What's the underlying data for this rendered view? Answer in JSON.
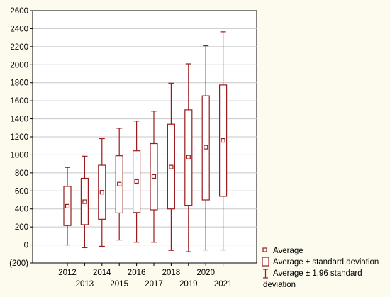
{
  "chart_data": {
    "type": "box",
    "categories": [
      "2012",
      "2013",
      "2014",
      "2015",
      "2016",
      "2017",
      "2018",
      "2019",
      "2020",
      "2021"
    ],
    "series": [
      {
        "average": [
          430,
          480,
          585,
          675,
          705,
          760,
          865,
          975,
          1085,
          1160
        ],
        "box_low": [
          215,
          225,
          285,
          355,
          360,
          390,
          400,
          440,
          500,
          540
        ],
        "box_high": [
          650,
          740,
          885,
          990,
          1045,
          1125,
          1340,
          1500,
          1655,
          1775
        ],
        "whisker_low": [
          0,
          -30,
          -15,
          55,
          30,
          30,
          -60,
          -75,
          -55,
          -55
        ],
        "whisker_high": [
          860,
          985,
          1180,
          1295,
          1375,
          1485,
          1795,
          2010,
          2210,
          2365
        ]
      }
    ],
    "ylim": [
      -200,
      2600
    ],
    "yticks": [
      -200,
      0,
      200,
      400,
      600,
      800,
      1000,
      1200,
      1400,
      1600,
      1800,
      2000,
      2200,
      2400,
      2600
    ],
    "ytick_labels": [
      "(200)",
      "0",
      "200",
      "400",
      "600",
      "800",
      "1000",
      "1200",
      "1400",
      "1600",
      "1800",
      "2000",
      "2200",
      "2400",
      "2600"
    ],
    "grid": true,
    "legend_position": "bottom-right",
    "series_color": "#9b1c1c"
  },
  "legend": {
    "average": "Average",
    "box": "Average ± standard deviation",
    "whisker_line1": "Average  ± 1.96 standard",
    "whisker_line2": "deviation"
  }
}
